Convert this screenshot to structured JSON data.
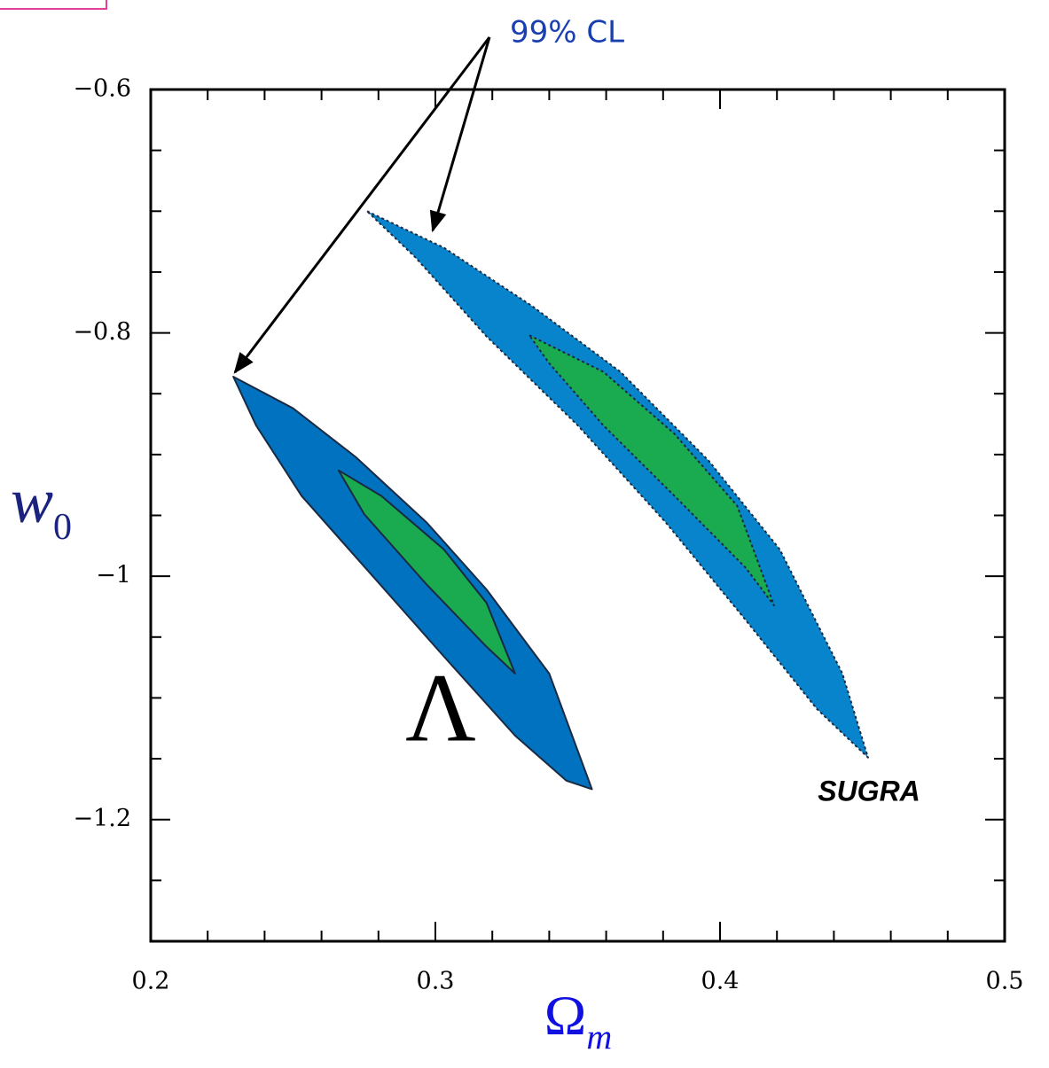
{
  "chart_data": {
    "type": "contour",
    "xlabel": "Ω",
    "xlabel_sub": "m",
    "ylabel": "w",
    "ylabel_sub": "0",
    "xlim": [
      0.2,
      0.5
    ],
    "ylim": [
      -1.3,
      -0.6
    ],
    "xticks": [
      0.2,
      0.3,
      0.4,
      0.5
    ],
    "yticks": [
      {
        "value": -0.6,
        "label": "−0.6"
      },
      {
        "value": -0.8,
        "label": "−0.8"
      },
      {
        "value": -1,
        "label": "−1"
      },
      {
        "value": -1.2,
        "label": "−1.2"
      }
    ],
    "xminorticks": [
      0.22,
      0.24,
      0.26,
      0.28,
      0.32,
      0.34,
      0.36,
      0.38,
      0.42,
      0.44,
      0.46,
      0.48
    ],
    "yminorticks": [
      -0.65,
      -0.7,
      -0.75,
      -0.85,
      -0.9,
      -0.95,
      -1.05,
      -1.1,
      -1.15,
      -1.25
    ],
    "contours": [
      {
        "color": "#0072c0",
        "x": [
          0.229,
          0.25,
          0.272,
          0.297,
          0.318,
          0.34,
          0.355,
          0.346,
          0.328,
          0.303,
          0.278,
          0.253,
          0.237
        ],
        "y": [
          -0.836,
          -0.862,
          -0.902,
          -0.956,
          -1.011,
          -1.08,
          -1.175,
          -1.168,
          -1.131,
          -1.066,
          -1.0,
          -0.934,
          -0.876
        ]
      },
      {
        "color": "#1aaa50",
        "x": [
          0.266,
          0.281,
          0.303,
          0.318,
          0.328,
          0.318,
          0.297,
          0.275
        ],
        "y": [
          -0.913,
          -0.934,
          -0.978,
          -1.022,
          -1.08,
          -1.058,
          -1.007,
          -0.949
        ]
      },
      {
        "color": "#0884cc",
        "x": [
          0.276,
          0.303,
          0.334,
          0.365,
          0.396,
          0.421,
          0.443,
          0.452,
          0.434,
          0.409,
          0.381,
          0.35,
          0.318,
          0.293
        ],
        "y": [
          -0.7,
          -0.73,
          -0.778,
          -0.832,
          -0.905,
          -0.978,
          -1.08,
          -1.149,
          -1.109,
          -1.036,
          -0.956,
          -0.876,
          -0.803,
          -0.738
        ]
      },
      {
        "color": "#1aaa50",
        "x": [
          0.333,
          0.359,
          0.384,
          0.406,
          0.419,
          0.409,
          0.384,
          0.359,
          0.34
        ],
        "y": [
          -0.802,
          -0.832,
          -0.883,
          -0.942,
          -1.024,
          -0.993,
          -0.934,
          -0.876,
          -0.825
        ]
      }
    ],
    "annotations": {
      "cl": "99% CL",
      "lambda": "Λ",
      "sugra": "SUGRA"
    }
  }
}
